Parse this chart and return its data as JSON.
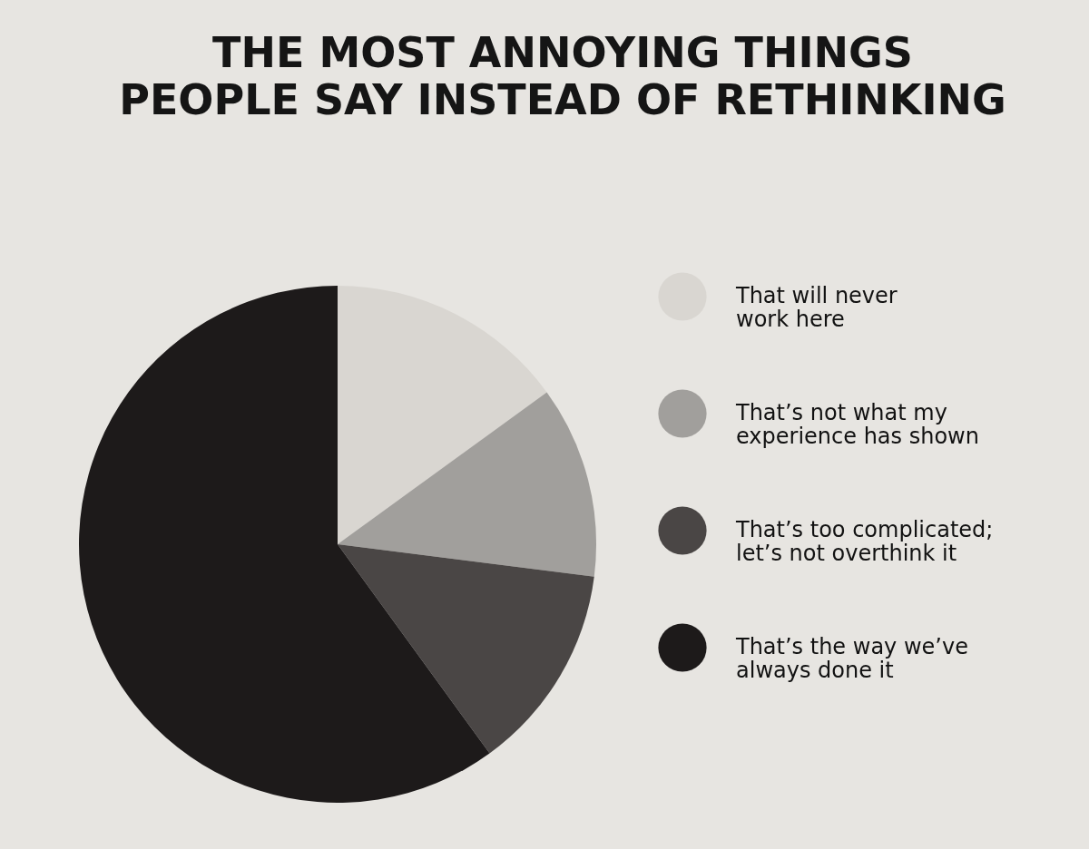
{
  "chart_data": {
    "type": "pie",
    "title": "THE MOST ANNOYING THINGS\nPEOPLE SAY INSTEAD OF RETHINKING",
    "categories": [
      "That will never\nwork here",
      "That’s not what my\nexperience has shown",
      "That’s too complicated;\nlet’s not overthink it",
      "That’s the way we’ve\nalways done it"
    ],
    "values": [
      15,
      12,
      13,
      60
    ],
    "colors": [
      "#d9d6d1",
      "#a19f9c",
      "#4a4645",
      "#1d1a1a"
    ],
    "legend": "right"
  }
}
